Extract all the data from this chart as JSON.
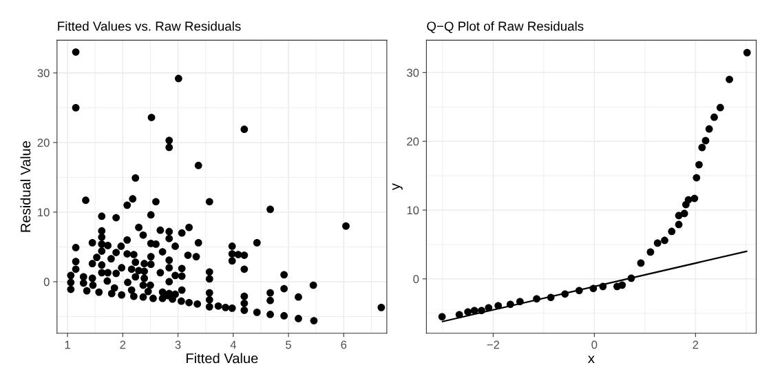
{
  "chart_data": [
    {
      "type": "scatter",
      "title": "Fitted Values vs. Raw Residuals",
      "xlabel": "Fitted Value",
      "ylabel": "Residual Value",
      "xlim": [
        0.81,
        6.78
      ],
      "ylim": [
        -7.4,
        34.7
      ],
      "xticks": [
        1,
        2,
        3,
        4,
        5,
        6
      ],
      "yticks": [
        0,
        10,
        20,
        30
      ],
      "grid": true,
      "marker": "circle",
      "series": [
        {
          "color": "#000000",
          "x": [
            1.15,
            3.01,
            1.15,
            2.52,
            4.2,
            2.84,
            2.84,
            3.37,
            2.23,
            1.33,
            2.18,
            2.08,
            2.6,
            3.57,
            4.67,
            6.04,
            1.62,
            1.88,
            2.51,
            2.29,
            2.37,
            2.68,
            2.84,
            2.84,
            3.07,
            3.2,
            3.37,
            2.95,
            2.08,
            1.97,
            1.73,
            1.62,
            1.62,
            1.62,
            1.62,
            1.45,
            1.15,
            1.15,
            1.15,
            1.06,
            1.06,
            1.06,
            1.29,
            1.45,
            1.45,
            1.53,
            1.79,
            1.88,
            1.98,
            1.88,
            1.62,
            1.62,
            1.73,
            2.08,
            2.2,
            2.23,
            2.16,
            2.29,
            2.23,
            2.09,
            2.39,
            2.39,
            2.39,
            2.37,
            2.51,
            2.51,
            2.5,
            2.72,
            2.84,
            2.84,
            2.84,
            2.68,
            2.95,
            3.07,
            3.07,
            3.07,
            3.18,
            3.33,
            2.51,
            2.6,
            3.98,
            3.98,
            3.98,
            4.09,
            4.2,
            4.2,
            4.43,
            3.57,
            3.57,
            3.57,
            3.57,
            3.57,
            4.92,
            4.92,
            4.67,
            4.67,
            4.67,
            5.45,
            5.18,
            4.92,
            5.18,
            5.46,
            4.43,
            4.2,
            4.2,
            4.2,
            3.98,
            3.86,
            3.73,
            3.35,
            3.2,
            3.06,
            2.9,
            2.72,
            2.72,
            2.84,
            2.95,
            2.55,
            2.37,
            2.2,
            1.98,
            1.8,
            1.57,
            1.35,
            6.68,
            1.29,
            1.46,
            1.72,
            1.85,
            2.16,
            2.46,
            2.82
          ],
          "values": [
            33.0,
            29.2,
            25.0,
            23.6,
            21.9,
            20.3,
            19.3,
            16.7,
            14.9,
            11.7,
            11.9,
            11.0,
            11.5,
            11.5,
            10.4,
            8.0,
            9.4,
            9.2,
            9.6,
            7.8,
            6.7,
            7.4,
            7.2,
            6.2,
            7.0,
            7.8,
            5.6,
            5.1,
            6.0,
            5.1,
            5.2,
            7.3,
            6.4,
            5.4,
            4.4,
            5.6,
            4.9,
            2.9,
            1.8,
            0.9,
            -0.1,
            -1.1,
            0.7,
            0.5,
            2.6,
            3.5,
            3.3,
            4.2,
            2.0,
            1.2,
            2.4,
            1.3,
            1.3,
            4.0,
            3.9,
            2.8,
            1.8,
            1.6,
            0.7,
            -0.1,
            2.6,
            1.5,
            0.5,
            -0.5,
            3.6,
            2.5,
            -0.5,
            4.3,
            3.1,
            2.0,
            0.0,
            1.3,
            0.9,
            1.9,
            0.8,
            -1.2,
            3.8,
            3.6,
            5.5,
            5.4,
            5.1,
            4.0,
            3.0,
            3.9,
            3.8,
            1.8,
            5.6,
            1.4,
            0.4,
            -1.6,
            -2.6,
            -3.6,
            1.0,
            -1.0,
            -1.6,
            -2.7,
            -4.7,
            -0.5,
            -2.2,
            -4.9,
            -5.3,
            -5.6,
            -4.4,
            -2.1,
            -3.1,
            -4.1,
            -3.8,
            -3.7,
            -3.5,
            -3.2,
            -3.0,
            -2.8,
            -2.5,
            -2.4,
            -1.5,
            -1.7,
            -1.8,
            -2.4,
            -2.2,
            -2.1,
            -1.9,
            -1.7,
            -1.5,
            -1.3,
            -3.7,
            -0.2,
            -0.5,
            0.1,
            -0.9,
            -1.2,
            -1.4,
            -2.0
          ]
        }
      ]
    },
    {
      "type": "scatter",
      "title": "Q−Q Plot of Raw Residuals",
      "xlabel": "x",
      "ylabel": "y",
      "xlim": [
        -3.32,
        3.2
      ],
      "ylim": [
        -7.9,
        34.7
      ],
      "xticks": [
        {
          "value": -2,
          "label": "−2"
        },
        0,
        2
      ],
      "yticks": [
        0,
        10,
        20,
        30
      ],
      "grid": true,
      "series": [
        {
          "color": "#000000",
          "marker": "circle",
          "x": [
            -3.01,
            -2.67,
            -2.5,
            -2.37,
            -2.23,
            -2.09,
            -1.9,
            -1.66,
            -1.47,
            -1.14,
            -0.86,
            -0.58,
            -0.3,
            -0.02,
            0.17,
            0.45,
            0.55,
            0.73,
            0.92,
            1.11,
            1.25,
            1.39,
            1.53,
            1.67,
            1.67,
            1.78,
            1.81,
            1.86,
            1.98,
            2.02,
            2.07,
            2.13,
            2.2,
            2.27,
            2.37,
            2.49,
            2.67,
            3.02
          ],
          "values": [
            -5.5,
            -5.2,
            -4.8,
            -4.6,
            -4.6,
            -4.2,
            -3.9,
            -3.7,
            -3.3,
            -2.9,
            -2.7,
            -2.2,
            -1.7,
            -1.4,
            -1.1,
            -1.1,
            -0.9,
            0.1,
            2.3,
            3.9,
            5.2,
            5.6,
            6.9,
            7.9,
            9.2,
            9.5,
            10.8,
            11.5,
            11.7,
            14.7,
            16.6,
            19.1,
            20.1,
            21.8,
            23.5,
            24.9,
            29.0,
            32.9
          ]
        },
        {
          "type": "line",
          "color": "#000000",
          "marker": "none",
          "x": [
            -3.0,
            3.01
          ],
          "values": [
            -6.2,
            4.0
          ]
        }
      ]
    }
  ]
}
